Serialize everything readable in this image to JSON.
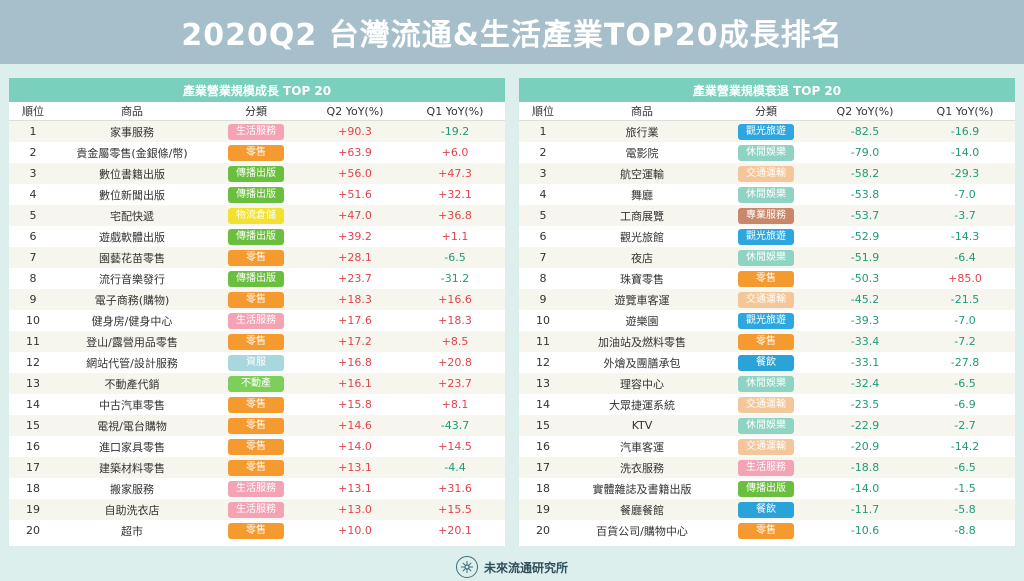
{
  "title": "2020Q2 台灣流通&生活產業TOP20成長排名",
  "columns": {
    "rank": "順位",
    "name": "商品",
    "category": "分類",
    "q2": "Q2 YoY(%)",
    "q1": "Q1 YoY(%)"
  },
  "colors": {
    "生活服務": "#f4a3b4",
    "零售": "#f59a2f",
    "傳播出版": "#6bbf3e",
    "物流倉儲": "#f2e12e",
    "資服": "#a9d7de",
    "不動產": "#7ccf5a",
    "觀光旅遊": "#2ea7e0",
    "休閒娛樂": "#8fd3c2",
    "交通運輸": "#f3c79a",
    "專業服務": "#c9876a",
    "餐飲": "#2aa3d8"
  },
  "left": {
    "header": "產業營業規模成長 TOP 20",
    "rows": [
      {
        "rank": "1",
        "name": "家事服務",
        "category": "生活服務",
        "q2": "+90.3",
        "q1": "-19.2"
      },
      {
        "rank": "2",
        "name": "貴金屬零售(金銀條/幣)",
        "category": "零售",
        "q2": "+63.9",
        "q1": "+6.0"
      },
      {
        "rank": "3",
        "name": "數位書籍出版",
        "category": "傳播出版",
        "q2": "+56.0",
        "q1": "+47.3"
      },
      {
        "rank": "4",
        "name": "數位新聞出版",
        "category": "傳播出版",
        "q2": "+51.6",
        "q1": "+32.1"
      },
      {
        "rank": "5",
        "name": "宅配快遞",
        "category": "物流倉儲",
        "q2": "+47.0",
        "q1": "+36.8"
      },
      {
        "rank": "6",
        "name": "遊戲軟體出版",
        "category": "傳播出版",
        "q2": "+39.2",
        "q1": "+1.1"
      },
      {
        "rank": "7",
        "name": "園藝花苗零售",
        "category": "零售",
        "q2": "+28.1",
        "q1": "-6.5"
      },
      {
        "rank": "8",
        "name": "流行音樂發行",
        "category": "傳播出版",
        "q2": "+23.7",
        "q1": "-31.2"
      },
      {
        "rank": "9",
        "name": "電子商務(購物)",
        "category": "零售",
        "q2": "+18.3",
        "q1": "+16.6"
      },
      {
        "rank": "10",
        "name": "健身房/健身中心",
        "category": "生活服務",
        "q2": "+17.6",
        "q1": "+18.3"
      },
      {
        "rank": "11",
        "name": "登山/露營用品零售",
        "category": "零售",
        "q2": "+17.2",
        "q1": "+8.5"
      },
      {
        "rank": "12",
        "name": "網站代管/設計服務",
        "category": "資服",
        "q2": "+16.8",
        "q1": "+20.8"
      },
      {
        "rank": "13",
        "name": "不動產代銷",
        "category": "不動產",
        "q2": "+16.1",
        "q1": "+23.7"
      },
      {
        "rank": "14",
        "name": "中古汽車零售",
        "category": "零售",
        "q2": "+15.8",
        "q1": "+8.1"
      },
      {
        "rank": "15",
        "name": "電視/電台購物",
        "category": "零售",
        "q2": "+14.6",
        "q1": "-43.7"
      },
      {
        "rank": "16",
        "name": "進口家具零售",
        "category": "零售",
        "q2": "+14.0",
        "q1": "+14.5"
      },
      {
        "rank": "17",
        "name": "建築材料零售",
        "category": "零售",
        "q2": "+13.1",
        "q1": "-4.4"
      },
      {
        "rank": "18",
        "name": "搬家服務",
        "category": "生活服務",
        "q2": "+13.1",
        "q1": "+31.6"
      },
      {
        "rank": "19",
        "name": "自助洗衣店",
        "category": "生活服務",
        "q2": "+13.0",
        "q1": "+15.5"
      },
      {
        "rank": "20",
        "name": "超市",
        "category": "零售",
        "q2": "+10.0",
        "q1": "+20.1"
      }
    ]
  },
  "right": {
    "header": "產業營業規模衰退 TOP 20",
    "rows": [
      {
        "rank": "1",
        "name": "旅行業",
        "category": "觀光旅遊",
        "q2": "-82.5",
        "q1": "-16.9"
      },
      {
        "rank": "2",
        "name": "電影院",
        "category": "休閒娛樂",
        "q2": "-79.0",
        "q1": "-14.0"
      },
      {
        "rank": "3",
        "name": "航空運輸",
        "category": "交通運輸",
        "q2": "-58.2",
        "q1": "-29.3"
      },
      {
        "rank": "4",
        "name": "舞廳",
        "category": "休閒娛樂",
        "q2": "-53.8",
        "q1": "-7.0"
      },
      {
        "rank": "5",
        "name": "工商展覽",
        "category": "專業服務",
        "q2": "-53.7",
        "q1": "-3.7"
      },
      {
        "rank": "6",
        "name": "觀光旅館",
        "category": "觀光旅遊",
        "q2": "-52.9",
        "q1": "-14.3"
      },
      {
        "rank": "7",
        "name": "夜店",
        "category": "休閒娛樂",
        "q2": "-51.9",
        "q1": "-6.4"
      },
      {
        "rank": "8",
        "name": "珠寶零售",
        "category": "零售",
        "q2": "-50.3",
        "q1": "+85.0"
      },
      {
        "rank": "9",
        "name": "遊覽車客運",
        "category": "交通運輸",
        "q2": "-45.2",
        "q1": "-21.5"
      },
      {
        "rank": "10",
        "name": "遊樂園",
        "category": "觀光旅遊",
        "q2": "-39.3",
        "q1": "-7.0"
      },
      {
        "rank": "11",
        "name": "加油站及燃料零售",
        "category": "零售",
        "q2": "-33.4",
        "q1": "-7.2"
      },
      {
        "rank": "12",
        "name": "外燴及團膳承包",
        "category": "餐飲",
        "q2": "-33.1",
        "q1": "-27.8"
      },
      {
        "rank": "13",
        "name": "理容中心",
        "category": "休閒娛樂",
        "q2": "-32.4",
        "q1": "-6.5"
      },
      {
        "rank": "14",
        "name": "大眾捷運系統",
        "category": "交通運輸",
        "q2": "-23.5",
        "q1": "-6.9"
      },
      {
        "rank": "15",
        "name": "KTV",
        "category": "休閒娛樂",
        "q2": "-22.9",
        "q1": "-2.7"
      },
      {
        "rank": "16",
        "name": "汽車客運",
        "category": "交通運輸",
        "q2": "-20.9",
        "q1": "-14.2"
      },
      {
        "rank": "17",
        "name": "洗衣服務",
        "category": "生活服務",
        "q2": "-18.8",
        "q1": "-6.5"
      },
      {
        "rank": "18",
        "name": "實體雜誌及書籍出版",
        "category": "傳播出版",
        "q2": "-14.0",
        "q1": "-1.5"
      },
      {
        "rank": "19",
        "name": "餐廳餐館",
        "category": "餐飲",
        "q2": "-11.7",
        "q1": "-5.8"
      },
      {
        "rank": "20",
        "name": "百貨公司/購物中心",
        "category": "零售",
        "q2": "-10.6",
        "q1": "-8.8"
      }
    ]
  },
  "footer": {
    "logo_icon": "logo-icon",
    "brand": "未來流通研究所"
  }
}
